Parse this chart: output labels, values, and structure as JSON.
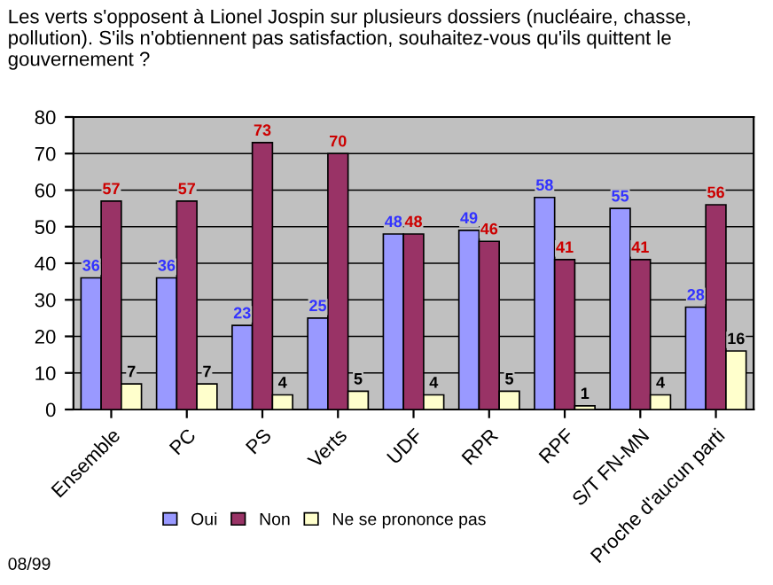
{
  "chart_data": {
    "type": "bar",
    "title": "Les verts s'opposent à Lionel Jospin sur plusieurs dossiers (nucléaire, chasse, pollution). S'ils n'obtiennent pas satisfaction, souhaitez-vous qu'ils quittent le gouvernement ?",
    "categories": [
      "Ensemble",
      "PC",
      "PS",
      "Verts",
      "UDF",
      "RPR",
      "RPF",
      "S/T FN-MN",
      "Proche d'aucun parti"
    ],
    "series": [
      {
        "name": "Oui",
        "color": "#9999ff",
        "values": [
          36,
          36,
          23,
          25,
          48,
          49,
          58,
          55,
          28
        ]
      },
      {
        "name": "Non",
        "color": "#993366",
        "values": [
          57,
          57,
          73,
          70,
          48,
          46,
          41,
          41,
          56
        ]
      },
      {
        "name": "Ne se prononce pas",
        "color": "#ffffcc",
        "values": [
          7,
          7,
          4,
          5,
          4,
          5,
          1,
          4,
          16
        ]
      }
    ],
    "ylim": [
      0,
      80
    ],
    "yticks": [
      0,
      10,
      20,
      30,
      40,
      50,
      60,
      70,
      80
    ],
    "grid": "y",
    "legend": "bottom",
    "data_labels": true,
    "annotations": [
      "08/99"
    ]
  }
}
